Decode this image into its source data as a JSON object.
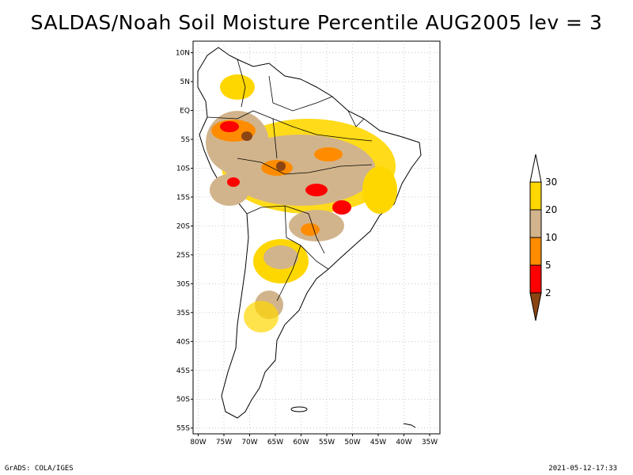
{
  "title": "SALDAS/Noah Soil Moisture Percentile AUG2005 lev = 3",
  "map": {
    "lat_ticks": [
      "10N",
      "5N",
      "EQ",
      "5S",
      "10S",
      "15S",
      "20S",
      "25S",
      "30S",
      "35S",
      "40S",
      "45S",
      "50S",
      "55S"
    ],
    "lon_ticks": [
      "80W",
      "75W",
      "70W",
      "65W",
      "60W",
      "55W",
      "50W",
      "45W",
      "40W",
      "35W"
    ],
    "extent": {
      "lon": [
        -81,
        -33
      ],
      "lat": [
        -56,
        12
      ]
    }
  },
  "legend": {
    "labels": [
      "2",
      "5",
      "10",
      "20",
      "30"
    ],
    "colors": {
      "below_2": "#8b4513",
      "2_5": "#ff0000",
      "5_10": "#ff8c00",
      "10_20": "#d2b48c",
      "20_30": "#ffd700",
      "above_30": "#ffffff"
    }
  },
  "footer": {
    "left": "GrADS: COLA/IGES",
    "right": "2021-05-12-17:33"
  }
}
